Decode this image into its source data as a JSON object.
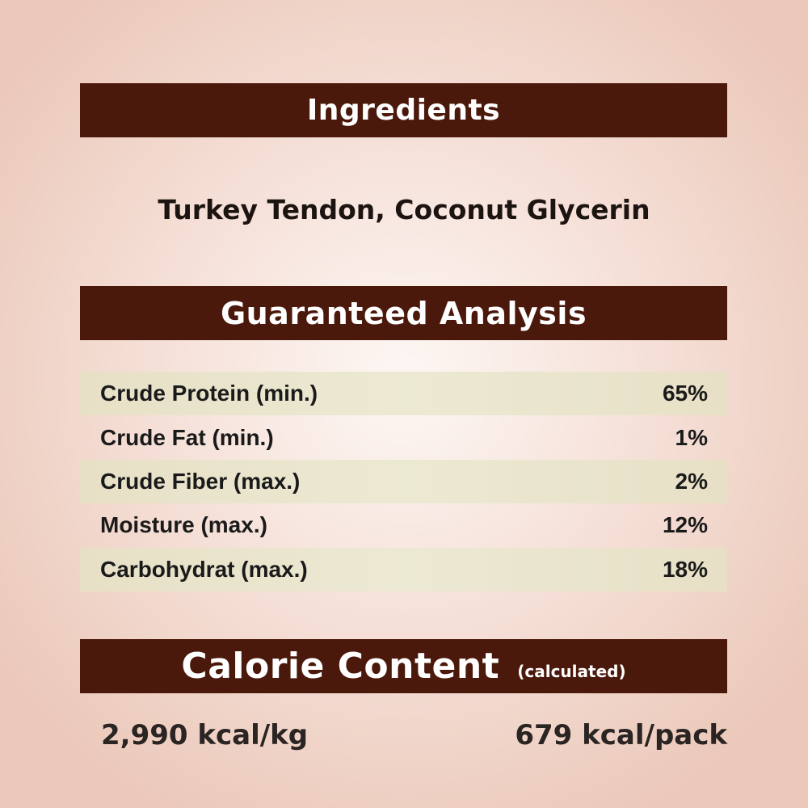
{
  "ingredients": {
    "heading": "Ingredients",
    "text": "Turkey Tendon, Coconut Glycerin"
  },
  "analysis": {
    "heading": "Guaranteed Analysis",
    "rows": [
      {
        "label": "Crude Protein (min.)",
        "value": "65%"
      },
      {
        "label": "Crude Fat (min.)",
        "value": "1%"
      },
      {
        "label": "Crude Fiber (max.)",
        "value": "2%"
      },
      {
        "label": "Moisture (max.)",
        "value": "12%"
      },
      {
        "label": "Carbohydrat (max.)",
        "value": "18%"
      }
    ]
  },
  "calorie": {
    "heading": "Calorie Content",
    "subheading": "(calculated)",
    "per_kg": "2,990 kcal/kg",
    "per_pack": "679 kcal/pack"
  },
  "colors": {
    "header_bar": "#4b190b",
    "stripe": "#e7e0c6"
  }
}
